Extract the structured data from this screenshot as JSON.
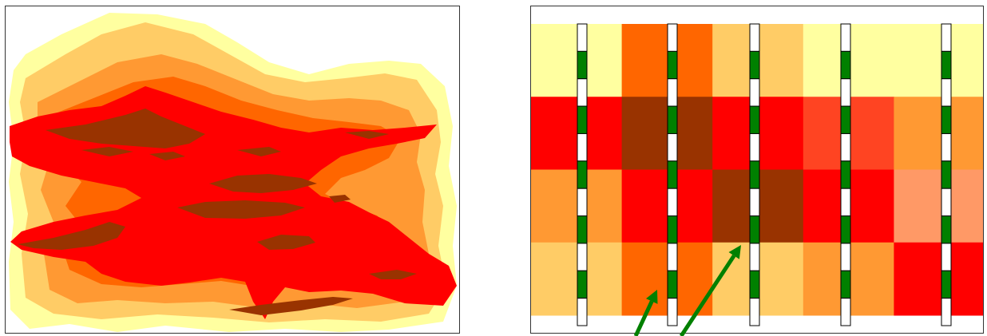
{
  "colors": {
    "pale_yellow": "#FFFFA0",
    "light_orange": "#FFCC66",
    "medium_orange": "#FF9933",
    "dark_orange": "#FF6600",
    "red": "#FF0000",
    "brown": "#993300",
    "orange_red": "#FF4422",
    "salmon": "#FF9966",
    "well_green": "#008000",
    "well_white": "#FFFFFF",
    "arrow_green": "#008000"
  },
  "left_panel": {
    "kind": "continuous-heterogeneity-map",
    "layers": [
      "pale_yellow",
      "light_orange",
      "medium_orange",
      "dark_orange",
      "red",
      "brown"
    ]
  },
  "right_panel": {
    "kind": "discretized-grid-with-wells",
    "grid_columns": 10,
    "grid_rows": 4,
    "cells": [
      [
        "pale_yellow",
        "pale_yellow",
        "dark_orange",
        "dark_orange",
        "light_orange",
        "light_orange",
        "pale_yellow",
        "pale_yellow",
        "pale_yellow",
        "pale_yellow"
      ],
      [
        "red",
        "red",
        "brown",
        "brown",
        "red",
        "red",
        "orange_red",
        "orange_red",
        "medium_orange",
        "medium_orange"
      ],
      [
        "medium_orange",
        "medium_orange",
        "red",
        "red",
        "brown",
        "brown",
        "red",
        "red",
        "salmon",
        "salmon"
      ],
      [
        "light_orange",
        "light_orange",
        "dark_orange",
        "dark_orange",
        "light_orange",
        "light_orange",
        "medium_orange",
        "medium_orange",
        "red",
        "red"
      ]
    ],
    "wells": [
      {
        "id": "well-1",
        "segments": 11
      },
      {
        "id": "well-2",
        "segments": 11
      },
      {
        "id": "well-3",
        "segments": 11
      },
      {
        "id": "well-4",
        "segments": 11
      },
      {
        "id": "well-5",
        "segments": 11
      }
    ],
    "arrows": [
      {
        "id": "arrow-1",
        "points_to": "well-2"
      },
      {
        "id": "arrow-2",
        "points_to": "well-3"
      }
    ]
  }
}
